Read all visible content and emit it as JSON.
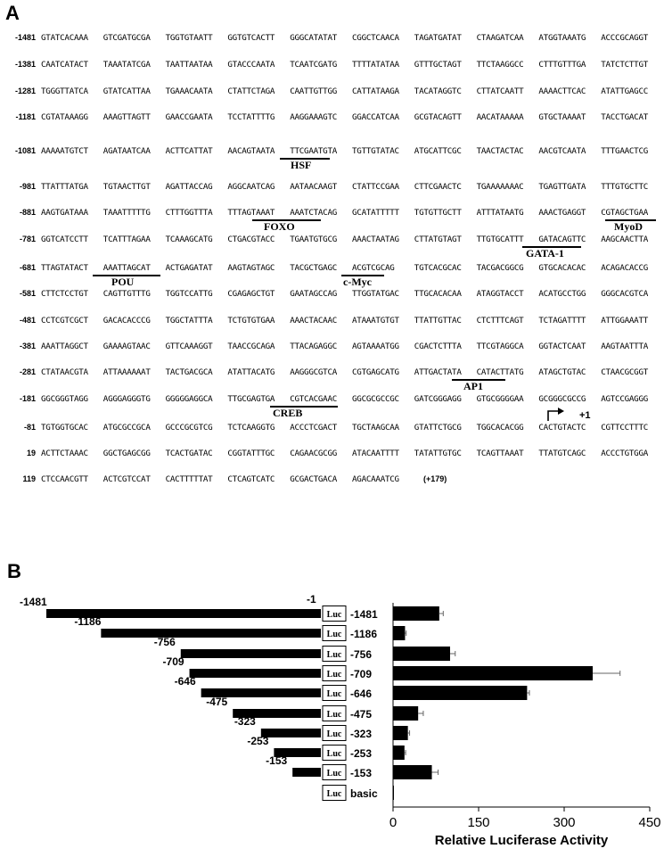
{
  "panel_a": {
    "label": "A",
    "rows": [
      {
        "num": "-1481",
        "blocks": [
          "GTATCACAAA",
          "GTCGATGCGA",
          "TGGTGTAATT",
          "GGTGTCACTT",
          "GGGCATATAT",
          "CGGCTCAACA",
          "TAGATGATAT",
          "CTAAGATCAA",
          "ATGGTAAATG",
          "ACCCGCAGGT"
        ]
      },
      {
        "num": "-1381",
        "blocks": [
          "CAATCATACT",
          "TAAATATCGA",
          "TAATTAATAA",
          "GTACCCAATA",
          "TCAATCGATG",
          "TTTTATATAA",
          "GTTTGCTAGT",
          "TTCTAAGGCC",
          "CTTTGTTTGA",
          "TATCTCTTGT"
        ]
      },
      {
        "num": "-1281",
        "blocks": [
          "TGGGTTATCA",
          "GTATCATTAA",
          "TGAAACAATA",
          "CTATTCTAGA",
          "CAATTGTTGG",
          "CATTATAAGA",
          "TACATAGGTC",
          "CTTATCAATT",
          "AAAACTTCAC",
          "ATATTGAGCC"
        ]
      },
      {
        "num": "-1181",
        "blocks": [
          "CGTATAAAGG",
          "AAAGTTAGTT",
          "GAACCGAATA",
          "TCCTATTTTG",
          "AAGGAAAGTC",
          "GGACCATCAA",
          "GCGTACAGTT",
          "AACATAAAAA",
          "GTGCTAAAAT",
          "TACCTGACAT"
        ]
      },
      {
        "num": "-1081",
        "blocks": [
          "AAAAATGTCT",
          "AGATAATCAA",
          "ACTTCATTAT",
          "AACAGTAATA",
          "TTCGAATGTA",
          "TGTTGTATAC",
          "ATGCATTCGC",
          "TAACTACTAC",
          "AACGTCAATA",
          "TTTGAACTCG"
        ]
      },
      {
        "num": "-981",
        "blocks": [
          "TTATTTATGA",
          "TGTAACTTGT",
          "AGATTACCAG",
          "AGGCAATCAG",
          "AATAACAAGT",
          "CTATTCCGAA",
          "CTTCGAACTC",
          "TGAAAAAAAC",
          "TGAGTTGATA",
          "TTTGTGCTTC"
        ]
      },
      {
        "num": "-881",
        "blocks": [
          "AAGTGATAAA",
          "TAAATTTTTG",
          "CTTTGGTTTA",
          "TTTAGTAAAT",
          "AAATCTACAG",
          "GCATATTTTT",
          "TGTGTTGCTT",
          "ATTTATAATG",
          "AAACTGAGGT",
          "CGTAGCTGAA"
        ]
      },
      {
        "num": "-781",
        "blocks": [
          "GGTCATCCTT",
          "TCATTTAGAA",
          "TCAAAGCATG",
          "CTGACGTACC",
          "TGAATGTGCG",
          "AAACTAATAG",
          "CTTATGTAGT",
          "TTGTGCATTT",
          "GATACAGTTC",
          "AAGCAACTTA"
        ]
      },
      {
        "num": "-681",
        "blocks": [
          "TTAGTATACT",
          "AAATTAGCAT",
          "ACTGAGATAT",
          "AAGTAGTAGC",
          "TACGCTGAGC",
          "ACGTCGCAG",
          "TGTCACGCAC",
          "TACGACGGCG",
          "GTGCACACAC",
          "ACAGACACCG"
        ]
      },
      {
        "num": "-581",
        "blocks": [
          "CTTCTCCTGT",
          "CAGTTGTTTG",
          "TGGTCCATTG",
          "CGAGAGCTGT",
          "GAATAGCCAG",
          "TTGGTATGAC",
          "TTGCACACAA",
          "ATAGGTACCT",
          "ACATGCCTGG",
          "GGGCACGTCA"
        ]
      },
      {
        "num": "-481",
        "blocks": [
          "CCTCGTCGCT",
          "GACACACCCG",
          "TGGCTATTTA",
          "TCTGTGTGAA",
          "AAACTACAAC",
          "ATAAATGTGT",
          "TTATTGTTAC",
          "CTCTTTCAGT",
          "TCTAGATTTT",
          "ATTGGAAATT"
        ]
      },
      {
        "num": "-381",
        "blocks": [
          "AAATTAGGCT",
          "GAAAAGTAAC",
          "GTTCAAAGGT",
          "TAACCGCAGA",
          "TTACAGAGGC",
          "AGTAAAATGG",
          "CGACTCTTTA",
          "TTCGTAGGCA",
          "GGTACTCAAT",
          "AAGTAATTTA"
        ]
      },
      {
        "num": "-281",
        "blocks": [
          "CTATAACGTA",
          "ATTAAAAAAT",
          "TACTGACGCA",
          "ATATTACATG",
          "AAGGGCGTCA",
          "CGTGAGCATG",
          "ATTGACTATA",
          "CATACTTATG",
          "ATAGCTGTAC",
          "CTAACGCGGT"
        ]
      },
      {
        "num": "-181",
        "blocks": [
          "GGCGGGTAGG",
          "AGGGAGGGTG",
          "GGGGGAGGCA",
          "TTGCGAGTGA",
          "CGTCACGAAC",
          "GGCGCGCCGC",
          "GATCGGGAGG",
          "GTGCGGGGAA",
          "GCGGGCGCCG",
          "AGTCCGAGGG"
        ]
      },
      {
        "num": "-81",
        "blocks": [
          "TGTGGTGCAC",
          "ATGCGCCGCA",
          "GCCCGCGTCG",
          "TCTCAAGGTG",
          "ACCCTCGACT",
          "TGCTAAGCAA",
          "GTATTCTGCG",
          "TGGCACACGG",
          "CACTGTACTC",
          "CGTTCCTTTC"
        ]
      },
      {
        "num": "19",
        "blocks": [
          "ACTTCTAAAC",
          "GGCTGAGCGG",
          "TCACTGATAC",
          "CGGTATTTGC",
          "CAGAACGCGG",
          "ATACAATTTT",
          "TATATTGTGC",
          "TCAGTTAAAT",
          "TTATGTCAGC",
          "ACCCTGTGGA"
        ]
      },
      {
        "num": "119",
        "blocks": [
          "CTCCAACGTT",
          "ACTCGTCCAT",
          "CACTTTTTAT",
          "CTCAGTCATC",
          "GCGACTGACA",
          "AGACAAATCG"
        ]
      }
    ],
    "end_marker": "(+179)",
    "sites": [
      {
        "name": "HSF",
        "row": 4
      },
      {
        "name": "FOXO",
        "row": 6
      },
      {
        "name": "MyoD",
        "row": 6
      },
      {
        "name": "GATA-1",
        "row": 7
      },
      {
        "name": "POU",
        "row": 8
      },
      {
        "name": "c-Myc",
        "row": 8
      },
      {
        "name": "AP1",
        "row": 12
      },
      {
        "name": "CREB",
        "row": 13
      }
    ],
    "tss_label": "+1"
  },
  "panel_b": {
    "label": "B",
    "chart_data": {
      "type": "bar",
      "orientation": "horizontal",
      "construct_label": "Luc",
      "end_label": "-1",
      "constructs": [
        {
          "start": "-1481",
          "start_value": -1481,
          "name": "-1481",
          "activity": 81,
          "error": 7
        },
        {
          "start": "-1186",
          "start_value": -1186,
          "name": "-1186",
          "activity": 21,
          "error": 2
        },
        {
          "start": "-756",
          "start_value": -756,
          "name": "-756",
          "activity": 100,
          "error": 9
        },
        {
          "start": "-709",
          "start_value": -709,
          "name": "-709",
          "activity": 350,
          "error": 48
        },
        {
          "start": "-646",
          "start_value": -646,
          "name": "-646",
          "activity": 235,
          "error": 4
        },
        {
          "start": "-475",
          "start_value": -475,
          "name": "-475",
          "activity": 44,
          "error": 9
        },
        {
          "start": "-323",
          "start_value": -323,
          "name": "-323",
          "activity": 26,
          "error": 3
        },
        {
          "start": "-253",
          "start_value": -253,
          "name": "-253",
          "activity": 20,
          "error": 2
        },
        {
          "start": "-153",
          "start_value": -153,
          "name": "-153",
          "activity": 68,
          "error": 11
        },
        {
          "start": "",
          "start_value": null,
          "name": "basic",
          "activity": 1,
          "error": 0
        }
      ],
      "xlabel": "Relative Luciferase Activity",
      "xlim": [
        0,
        450
      ],
      "xticks": [
        "0",
        "150",
        "300",
        "450"
      ],
      "grid": false
    }
  }
}
